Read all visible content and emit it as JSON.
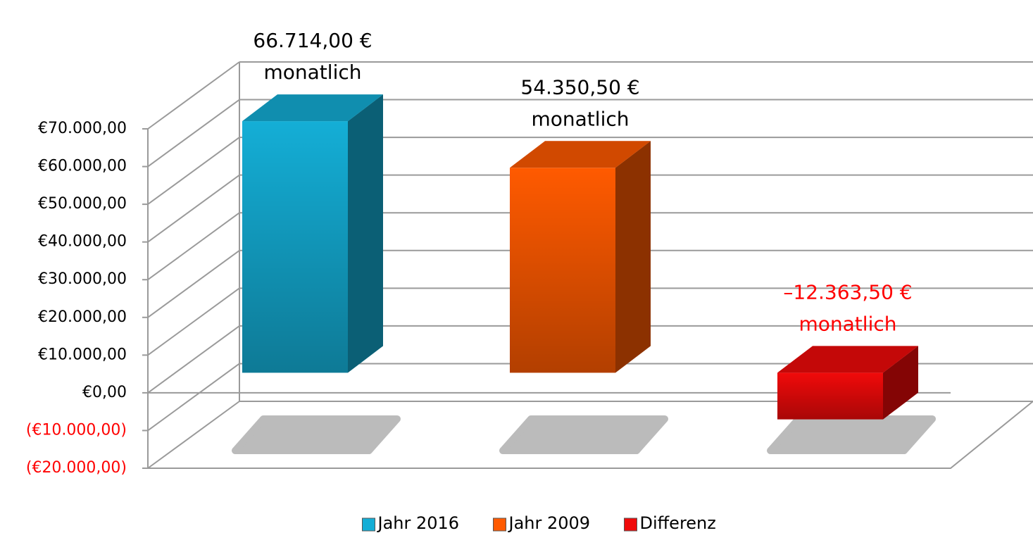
{
  "chart_data": {
    "type": "bar3d",
    "series": [
      {
        "name": "Jahr 2016",
        "color": "#14aed6",
        "values": [
          66714
        ],
        "value_labels": [
          "66.714,00 €"
        ],
        "value_label_notes": [
          "monatlich"
        ]
      },
      {
        "name": "Jahr 2009",
        "color": "#ff5a00",
        "values": [
          54350.5
        ],
        "value_labels": [
          "54.350,50 €"
        ],
        "value_label_notes": [
          "monatlich"
        ]
      },
      {
        "name": "Differenz",
        "color": "#f00a0a",
        "values": [
          -12363.5
        ],
        "value_labels": [
          "–12.363,50 €"
        ],
        "value_label_notes": [
          "monatlich"
        ]
      }
    ],
    "ylim": [
      -20000,
      70000
    ],
    "yticks": [
      {
        "value": -20000,
        "label": "(€20.000,00)"
      },
      {
        "value": -10000,
        "label": "(€10.000,00)"
      },
      {
        "value": 0,
        "label": "€0,00"
      },
      {
        "value": 10000,
        "label": "€10.000,00"
      },
      {
        "value": 20000,
        "label": "€20.000,00"
      },
      {
        "value": 30000,
        "label": "€30.000,00"
      },
      {
        "value": 40000,
        "label": "€40.000,00"
      },
      {
        "value": 50000,
        "label": "€50.000,00"
      },
      {
        "value": 60000,
        "label": "€60.000,00"
      },
      {
        "value": 70000,
        "label": "€70.000,00"
      }
    ],
    "grid": true,
    "legend": "bottom"
  }
}
